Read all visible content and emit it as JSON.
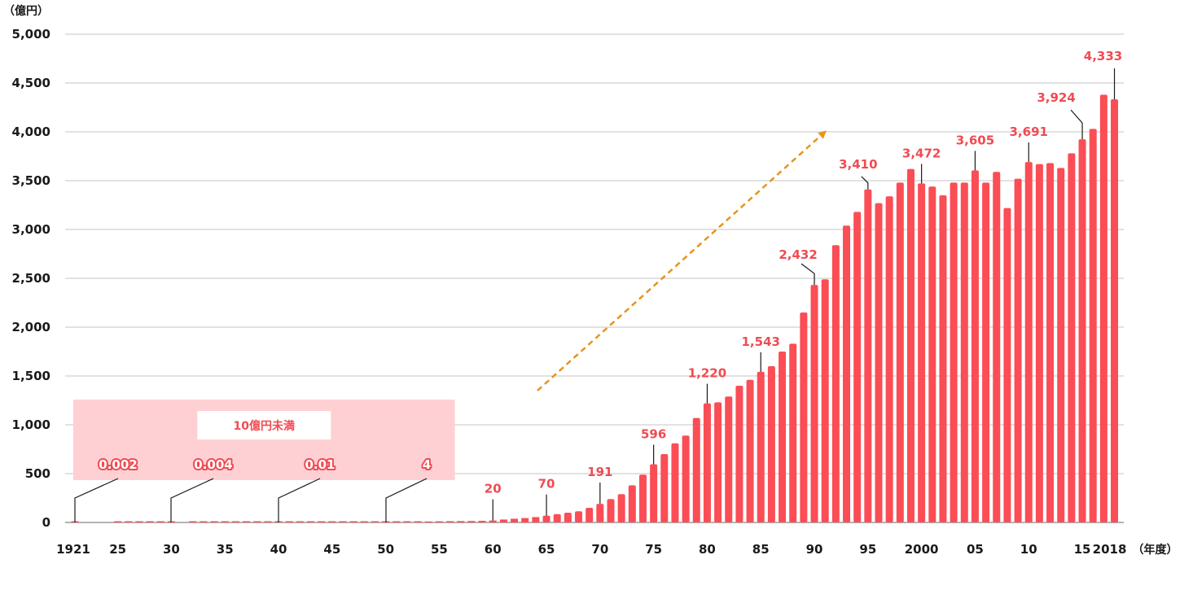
{
  "chart_data": {
    "type": "bar",
    "y_unit": "（億円）",
    "x_unit": "（年度）",
    "ylim": [
      0,
      5000
    ],
    "y_ticks": [
      0,
      500,
      1000,
      1500,
      2000,
      2500,
      3000,
      3500,
      4000,
      4500,
      5000
    ],
    "y_tick_labels": [
      "0",
      "500",
      "1,000",
      "1,500",
      "2,000",
      "2,500",
      "3,000",
      "3,500",
      "4,000",
      "4,500",
      "5,000"
    ],
    "grid": true,
    "x_ticks": [
      1921,
      1925,
      1930,
      1935,
      1940,
      1945,
      1950,
      1955,
      1960,
      1965,
      1970,
      1975,
      1980,
      1985,
      1990,
      1995,
      2000,
      2005,
      2010,
      2015,
      2018
    ],
    "x_tick_labels": [
      "1921",
      "25",
      "30",
      "35",
      "40",
      "45",
      "50",
      "55",
      "60",
      "65",
      "70",
      "75",
      "80",
      "85",
      "90",
      "95",
      "2000",
      "05",
      "10",
      "15",
      "2018"
    ],
    "series": [
      {
        "color": "#fb4d55",
        "x": [
          1921,
          1922,
          1923,
          1924,
          1925,
          1926,
          1927,
          1928,
          1929,
          1930,
          1931,
          1932,
          1933,
          1934,
          1935,
          1936,
          1937,
          1938,
          1939,
          1940,
          1941,
          1942,
          1943,
          1944,
          1945,
          1946,
          1947,
          1948,
          1949,
          1950,
          1951,
          1952,
          1953,
          1954,
          1955,
          1956,
          1957,
          1958,
          1959,
          1960,
          1961,
          1962,
          1963,
          1964,
          1965,
          1966,
          1967,
          1968,
          1969,
          1970,
          1971,
          1972,
          1973,
          1974,
          1975,
          1976,
          1977,
          1978,
          1979,
          1980,
          1981,
          1982,
          1983,
          1984,
          1985,
          1986,
          1987,
          1988,
          1989,
          1990,
          1991,
          1992,
          1993,
          1994,
          1995,
          1996,
          1997,
          1998,
          1999,
          2000,
          2001,
          2002,
          2003,
          2004,
          2005,
          2006,
          2007,
          2008,
          2009,
          2010,
          2011,
          2012,
          2013,
          2014,
          2015,
          2016,
          2017,
          2018
        ],
        "values": [
          0.002,
          0,
          0,
          0,
          0.002,
          0.003,
          0.003,
          0.003,
          0.004,
          0.004,
          0,
          0.005,
          0.005,
          0.006,
          0.006,
          0.007,
          0.007,
          0.008,
          0.009,
          0.01,
          0.01,
          0.01,
          0.01,
          0.01,
          0.01,
          0.1,
          0.3,
          0.6,
          1,
          4,
          5,
          6,
          8,
          10,
          12,
          13,
          14,
          15,
          17,
          20,
          30,
          38,
          45,
          55,
          70,
          85,
          100,
          115,
          150,
          191,
          240,
          290,
          380,
          490,
          596,
          700,
          810,
          890,
          1070,
          1220,
          1230,
          1290,
          1400,
          1460,
          1543,
          1600,
          1750,
          1830,
          2150,
          2432,
          2490,
          2840,
          3040,
          3180,
          3410,
          3270,
          3340,
          3480,
          3620,
          3472,
          3440,
          3350,
          3480,
          3480,
          3605,
          3480,
          3590,
          3220,
          3520,
          3691,
          3670,
          3680,
          3630,
          3780,
          3924,
          4030,
          4380,
          4333
        ]
      }
    ],
    "data_labels": [
      {
        "x": 1921,
        "text": "0.002",
        "style": "outlined"
      },
      {
        "x": 1930,
        "text": "0.004",
        "style": "outlined"
      },
      {
        "x": 1940,
        "text": "0.01",
        "style": "outlined"
      },
      {
        "x": 1950,
        "text": "4",
        "style": "outlined"
      },
      {
        "x": 1960,
        "text": "20",
        "style": "plain"
      },
      {
        "x": 1965,
        "text": "70",
        "style": "plain"
      },
      {
        "x": 1970,
        "text": "191",
        "style": "plain"
      },
      {
        "x": 1975,
        "text": "596",
        "style": "plain"
      },
      {
        "x": 1980,
        "text": "1,220",
        "style": "plain"
      },
      {
        "x": 1985,
        "text": "1,543",
        "style": "plain"
      },
      {
        "x": 1990,
        "text": "2,432",
        "style": "plain"
      },
      {
        "x": 1995,
        "text": "3,410",
        "style": "plain"
      },
      {
        "x": 2000,
        "text": "3,472",
        "style": "plain"
      },
      {
        "x": 2005,
        "text": "3,605",
        "style": "plain"
      },
      {
        "x": 2010,
        "text": "3,691",
        "style": "plain"
      },
      {
        "x": 2015,
        "text": "3,924",
        "style": "plain"
      },
      {
        "x": 2018,
        "text": "4,333",
        "style": "plain"
      }
    ],
    "annotations": [
      {
        "type": "shaded-region",
        "x_range": [
          1921,
          1956
        ],
        "text": "10億円未満",
        "color": "#ffd0d3"
      },
      {
        "type": "trend-arrow",
        "color": "#e8941a",
        "style": "dashed"
      }
    ]
  }
}
